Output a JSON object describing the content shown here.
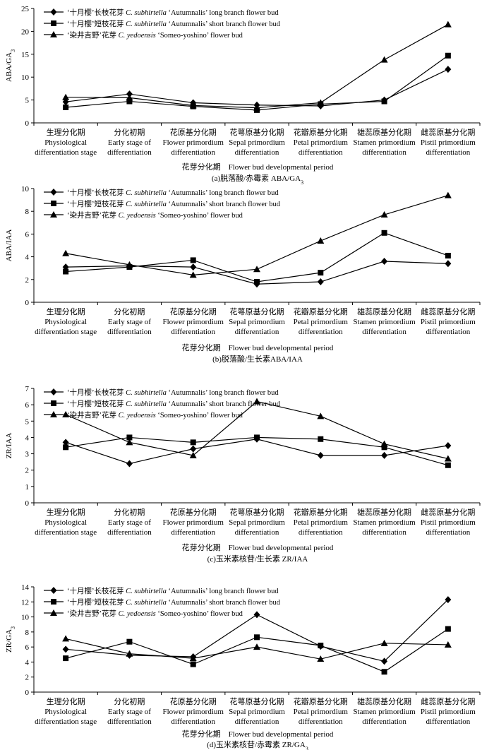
{
  "categories": [
    {
      "zh": "生理分化期",
      "en1": "Physiological",
      "en2": "differentiation stage"
    },
    {
      "zh": "分化初期",
      "en1": "Early stage of",
      "en2": "differentiation"
    },
    {
      "zh": "花原基分化期",
      "en1": "Flower primordium",
      "en2": "differentiation"
    },
    {
      "zh": "花萼原基分化期",
      "en1": "Sepal primordium",
      "en2": "differentiation"
    },
    {
      "zh": "花瓣原基分化期",
      "en1": "Petal primordium",
      "en2": "differentiation"
    },
    {
      "zh": "雄蕊原基分化期",
      "en1": "Stamen primordium",
      "en2": "differentiation"
    },
    {
      "zh": "雌蕊原基分化期",
      "en1": "Pistil primordium",
      "en2": "differentiation"
    }
  ],
  "xlabel": "花芽分化期　Flower bud developmental period",
  "legend": [
    {
      "marker": "diamond",
      "prefix": "‘十月樱’长枝花芽 ",
      "species": "C. subhirtella",
      "suffix": " ‘Autumnalis’ long branch flower bud"
    },
    {
      "marker": "square",
      "prefix": "‘十月樱’短枝花芽 ",
      "species": "C. subhirtella",
      "suffix": " ‘Autumnalis’ short branch flower bud"
    },
    {
      "marker": "triangle",
      "prefix": "‘染井吉野’花芽 ",
      "species": "C. yedoensis",
      "suffix": " ‘Someo-yoshino’ flower bud"
    }
  ],
  "chart_data": [
    {
      "type": "line",
      "ylabel": "ABA/GA3",
      "caption": "(a)脱落酸/赤霉素 ABA/GA3",
      "ylim": [
        0,
        25
      ],
      "yticks": [
        0,
        5,
        10,
        15,
        20,
        25
      ],
      "series": [
        {
          "name": "long branch flower bud",
          "values": [
            4.6,
            6.3,
            4.4,
            3.9,
            3.7,
            5.0,
            11.7
          ]
        },
        {
          "name": "short branch flower bud",
          "values": [
            3.4,
            4.7,
            3.6,
            2.8,
            4.1,
            4.7,
            14.7
          ]
        },
        {
          "name": "Someo-yoshino flower bud",
          "values": [
            5.6,
            5.5,
            3.8,
            3.3,
            4.4,
            13.8,
            21.5
          ]
        }
      ]
    },
    {
      "type": "line",
      "ylabel": "ABA/IAA",
      "caption": "(b)脱落酸/生长素ABA/IAA",
      "ylim": [
        0,
        10
      ],
      "yticks": [
        0,
        2,
        4,
        6,
        8,
        10
      ],
      "series": [
        {
          "name": "long branch flower bud",
          "values": [
            3.1,
            3.2,
            3.1,
            1.6,
            1.8,
            3.6,
            3.4
          ]
        },
        {
          "name": "short branch flower bud",
          "values": [
            2.7,
            3.1,
            3.7,
            1.8,
            2.6,
            6.1,
            4.1
          ]
        },
        {
          "name": "Someo-yoshino flower bud",
          "values": [
            4.3,
            3.3,
            2.4,
            2.9,
            5.4,
            7.7,
            9.4
          ]
        }
      ]
    },
    {
      "type": "line",
      "ylabel": "ZR/IAA",
      "caption": "(c)玉米素核苷/生长素 ZR/IAA",
      "ylim": [
        0,
        7
      ],
      "yticks": [
        0,
        1,
        2,
        3,
        4,
        5,
        6,
        7
      ],
      "series": [
        {
          "name": "long branch flower bud",
          "values": [
            3.7,
            2.4,
            3.3,
            3.9,
            2.9,
            2.9,
            3.5
          ]
        },
        {
          "name": "short branch flower bud",
          "values": [
            3.4,
            4.0,
            3.7,
            4.0,
            3.9,
            3.4,
            2.3
          ]
        },
        {
          "name": "Someo-yoshino flower bud",
          "values": [
            5.4,
            3.7,
            2.9,
            6.2,
            5.3,
            3.6,
            2.7
          ]
        }
      ]
    },
    {
      "type": "line",
      "ylabel": "ZR/GA3",
      "caption": "(d)玉米素核苷/赤霉素 ZR/GA3",
      "ylim": [
        0,
        14
      ],
      "yticks": [
        0,
        2,
        4,
        6,
        8,
        10,
        12,
        14
      ],
      "series": [
        {
          "name": "long branch flower bud",
          "values": [
            5.7,
            4.9,
            4.7,
            10.3,
            6.1,
            4.1,
            12.3
          ]
        },
        {
          "name": "short branch flower bud",
          "values": [
            4.5,
            6.7,
            3.7,
            7.3,
            6.2,
            2.7,
            8.4
          ]
        },
        {
          "name": "Someo-yoshino flower bud",
          "values": [
            7.1,
            5.1,
            4.5,
            6.0,
            4.4,
            6.5,
            6.3
          ]
        }
      ]
    }
  ]
}
